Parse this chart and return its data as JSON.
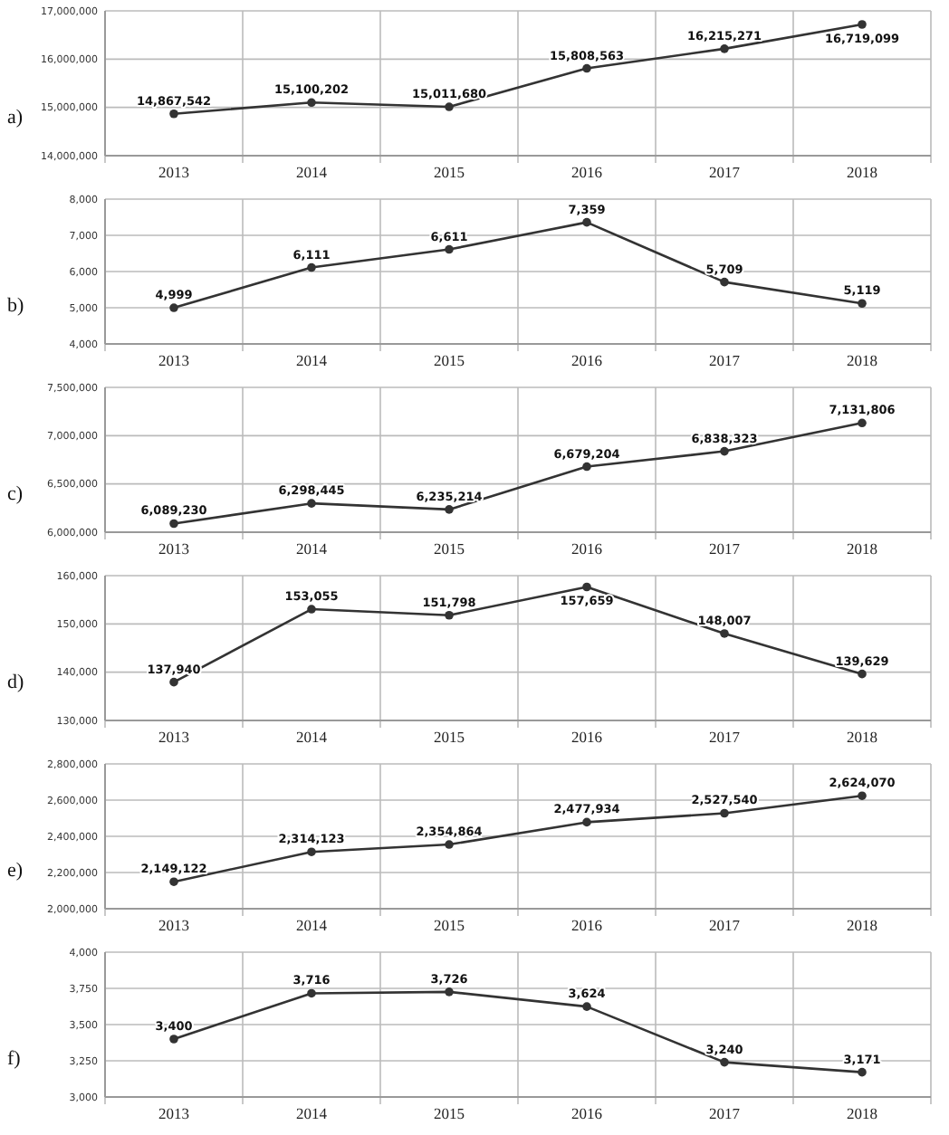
{
  "chart_data": [
    {
      "type": "line",
      "categories": [
        "2013",
        "2014",
        "2015",
        "2016",
        "2017",
        "2018"
      ],
      "values": [
        14867542,
        15100202,
        15011680,
        15808563,
        16215271,
        16719099
      ],
      "value_labels": [
        "14,867,542",
        "15,100,202",
        "15,011,680",
        "15,808,563",
        "16,215,271",
        "16,719,099"
      ],
      "color": "#333333",
      "ylim": [
        14000000,
        17000000
      ],
      "yticks": [
        {
          "value": 14000000,
          "label": "14,000,000"
        },
        {
          "value": 15000000,
          "label": "15,000,000"
        },
        {
          "value": 16000000,
          "label": "16,000,000"
        },
        {
          "value": 17000000,
          "label": "17,000,000"
        }
      ],
      "grid": true,
      "marker": "circle",
      "annotations": [
        "a)"
      ]
    },
    {
      "type": "line",
      "categories": [
        "2013",
        "2014",
        "2015",
        "2016",
        "2017",
        "2018"
      ],
      "values": [
        4999,
        6111,
        6611,
        7359,
        5709,
        5119
      ],
      "value_labels": [
        "4,999",
        "6,111",
        "6,611",
        "7,359",
        "5,709",
        "5,119"
      ],
      "color": "#333333",
      "ylim": [
        4000,
        8000
      ],
      "yticks": [
        {
          "value": 4000,
          "label": "4,000"
        },
        {
          "value": 5000,
          "label": "5,000"
        },
        {
          "value": 6000,
          "label": "6,000"
        },
        {
          "value": 7000,
          "label": "7,000"
        },
        {
          "value": 8000,
          "label": "8,000"
        }
      ],
      "grid": true,
      "marker": "circle",
      "annotations": [
        "b)"
      ]
    },
    {
      "type": "line",
      "categories": [
        "2013",
        "2014",
        "2015",
        "2016",
        "2017",
        "2018"
      ],
      "values": [
        6089230,
        6298445,
        6235214,
        6679204,
        6838323,
        7131806
      ],
      "value_labels": [
        "6,089,230",
        "6,298,445",
        "6,235,214",
        "6,679,204",
        "6,838,323",
        "7,131,806"
      ],
      "color": "#333333",
      "ylim": [
        6000000,
        7500000
      ],
      "yticks": [
        {
          "value": 6000000,
          "label": "6,000,000"
        },
        {
          "value": 6500000,
          "label": "6,500,000"
        },
        {
          "value": 7000000,
          "label": "7,000,000"
        },
        {
          "value": 7500000,
          "label": "7,500,000"
        }
      ],
      "grid": true,
      "marker": "circle",
      "annotations": [
        "c)"
      ]
    },
    {
      "type": "line",
      "categories": [
        "2013",
        "2014",
        "2015",
        "2016",
        "2017",
        "2018"
      ],
      "values": [
        137940,
        153055,
        151798,
        157659,
        148007,
        139629
      ],
      "value_labels": [
        "137,940",
        "153,055",
        "151,798",
        "157,659",
        "148,007",
        "139,629"
      ],
      "color": "#333333",
      "ylim": [
        130000,
        160000
      ],
      "yticks": [
        {
          "value": 130000,
          "label": "130,000"
        },
        {
          "value": 140000,
          "label": "140,000"
        },
        {
          "value": 150000,
          "label": "150,000"
        },
        {
          "value": 160000,
          "label": "160,000"
        }
      ],
      "grid": true,
      "marker": "circle",
      "annotations": [
        "d)"
      ]
    },
    {
      "type": "line",
      "categories": [
        "2013",
        "2014",
        "2015",
        "2016",
        "2017",
        "2018"
      ],
      "values": [
        2149122,
        2314123,
        2354864,
        2477934,
        2527540,
        2624070
      ],
      "value_labels": [
        "2,149,122",
        "2,314,123",
        "2,354,864",
        "2,477,934",
        "2,527,540",
        "2,624,070"
      ],
      "color": "#333333",
      "ylim": [
        2000000,
        2800000
      ],
      "yticks": [
        {
          "value": 2000000,
          "label": "2,000,000"
        },
        {
          "value": 2200000,
          "label": "2,200,000"
        },
        {
          "value": 2400000,
          "label": "2,400,000"
        },
        {
          "value": 2600000,
          "label": "2,600,000"
        },
        {
          "value": 2800000,
          "label": "2,800,000"
        }
      ],
      "grid": true,
      "marker": "circle",
      "annotations": [
        "e)"
      ]
    },
    {
      "type": "line",
      "categories": [
        "2013",
        "2014",
        "2015",
        "2016",
        "2017",
        "2018"
      ],
      "values": [
        3400,
        3716,
        3726,
        3624,
        3240,
        3171
      ],
      "value_labels": [
        "3,400",
        "3,716",
        "3,726",
        "3,624",
        "3,240",
        "3,171"
      ],
      "color": "#333333",
      "ylim": [
        3000,
        4000
      ],
      "yticks": [
        {
          "value": 3000,
          "label": "3,000"
        },
        {
          "value": 3250,
          "label": "3,250"
        },
        {
          "value": 3500,
          "label": "3,500"
        },
        {
          "value": 3750,
          "label": "3,750"
        },
        {
          "value": 4000,
          "label": "4,000"
        }
      ],
      "grid": true,
      "marker": "circle",
      "annotations": [
        "f)"
      ]
    }
  ]
}
